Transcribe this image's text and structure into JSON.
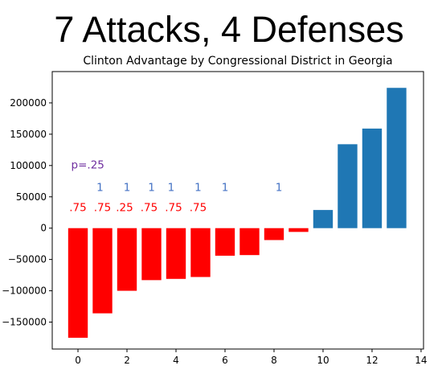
{
  "slide": {
    "title": "7 Attacks, 4 Defenses"
  },
  "chart_data": {
    "type": "bar",
    "title": "Clinton Advantage by Congressional District in Georgia",
    "xlabel": "",
    "ylabel": "",
    "x": [
      0,
      1,
      2,
      3,
      4,
      5,
      6,
      7,
      8,
      9,
      10,
      11,
      12,
      13
    ],
    "values": [
      -175000,
      -136000,
      -100000,
      -83000,
      -81000,
      -78000,
      -44000,
      -43000,
      -19000,
      -6000,
      29000,
      134000,
      159000,
      224000
    ],
    "colors": [
      "#ff0000",
      "#ff0000",
      "#ff0000",
      "#ff0000",
      "#ff0000",
      "#ff0000",
      "#ff0000",
      "#ff0000",
      "#ff0000",
      "#ff0000",
      "#1f77b4",
      "#1f77b4",
      "#1f77b4",
      "#1f77b4"
    ],
    "xlim": [
      -1.05,
      14.1
    ],
    "ylim": [
      -193000,
      250000
    ],
    "xticks": [
      0,
      2,
      4,
      6,
      8,
      10,
      12,
      14
    ],
    "xtick_labels": [
      "0",
      "2",
      "4",
      "6",
      "8",
      "10",
      "12",
      "14"
    ],
    "yticks": [
      -150000,
      -100000,
      -50000,
      0,
      50000,
      100000,
      150000,
      200000
    ],
    "ytick_labels": [
      "−150000",
      "−100000",
      "−50000",
      "0",
      "50000",
      "100000",
      "150000",
      "200000"
    ],
    "annotations": [
      {
        "text": ".75",
        "x": 0,
        "y": 27000,
        "color": "#ff0000"
      },
      {
        "text": ".75",
        "x": 1,
        "y": 27000,
        "color": "#ff0000"
      },
      {
        "text": ".25",
        "x": 1.9,
        "y": 27000,
        "color": "#ff0000"
      },
      {
        "text": ".75",
        "x": 2.9,
        "y": 27000,
        "color": "#ff0000"
      },
      {
        "text": ".75",
        "x": 3.9,
        "y": 27000,
        "color": "#ff0000"
      },
      {
        "text": ".75",
        "x": 4.9,
        "y": 27000,
        "color": "#ff0000"
      },
      {
        "text": "1",
        "x": 0.9,
        "y": 59000,
        "color": "#4472c4"
      },
      {
        "text": "1",
        "x": 2.0,
        "y": 59000,
        "color": "#4472c4"
      },
      {
        "text": "1",
        "x": 3.0,
        "y": 59000,
        "color": "#4472c4"
      },
      {
        "text": "1",
        "x": 3.8,
        "y": 59000,
        "color": "#4472c4"
      },
      {
        "text": "1",
        "x": 4.9,
        "y": 59000,
        "color": "#4472c4"
      },
      {
        "text": "1",
        "x": 6.0,
        "y": 59000,
        "color": "#4472c4"
      },
      {
        "text": "1",
        "x": 8.2,
        "y": 59000,
        "color": "#4472c4"
      },
      {
        "text": "p=.25",
        "x": 0.4,
        "y": 95000,
        "color": "#7030a0"
      }
    ]
  }
}
